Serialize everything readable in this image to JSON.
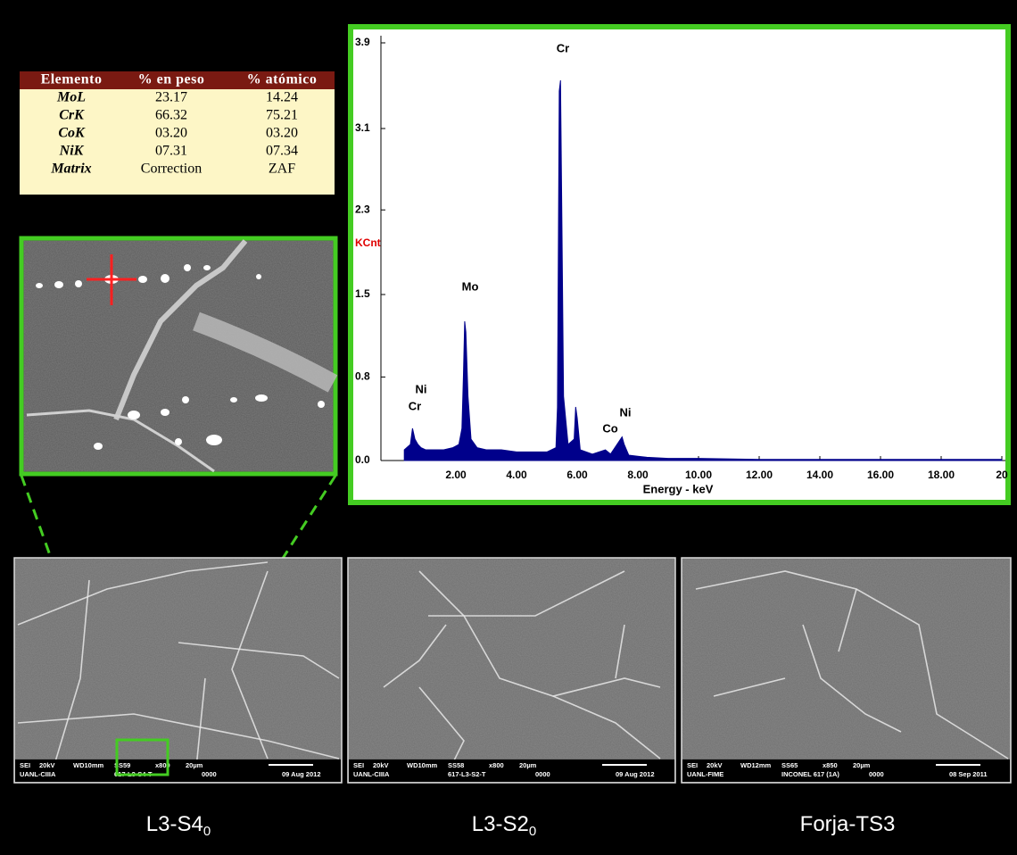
{
  "table": {
    "header": [
      "Elemento",
      "% en peso",
      "% atómico"
    ],
    "rows": [
      [
        "MoL",
        "23.17",
        "14.24"
      ],
      [
        "CrK",
        "66.32",
        "75.21"
      ],
      [
        "CoK",
        "03.20",
        "03.20"
      ],
      [
        "NiK",
        "07.31",
        "07.34"
      ],
      [
        "Matrix",
        "Correction",
        "ZAF"
      ]
    ]
  },
  "chart_data": {
    "type": "area",
    "y_label": "KCnt",
    "x_label": "Energy - keV",
    "color": "#00008b",
    "x": [
      0.3,
      0.5,
      0.57,
      0.65,
      0.75,
      0.85,
      1.0,
      1.3,
      1.6,
      1.9,
      2.1,
      2.2,
      2.25,
      2.29,
      2.33,
      2.4,
      2.5,
      2.7,
      3.0,
      3.5,
      4.0,
      4.5,
      5.0,
      5.3,
      5.35,
      5.41,
      5.45,
      5.5,
      5.55,
      5.7,
      5.9,
      5.95,
      6.0,
      6.1,
      6.5,
      6.93,
      7.1,
      7.48,
      7.55,
      7.7,
      8.0,
      8.3,
      9,
      10,
      12,
      14,
      16,
      18,
      20
    ],
    "values": [
      0.1,
      0.15,
      0.3,
      0.2,
      0.15,
      0.12,
      0.1,
      0.1,
      0.1,
      0.12,
      0.15,
      0.3,
      0.8,
      1.3,
      1.2,
      0.6,
      0.2,
      0.12,
      0.1,
      0.1,
      0.08,
      0.08,
      0.08,
      0.12,
      0.5,
      3.45,
      3.55,
      2.1,
      0.6,
      0.15,
      0.2,
      0.5,
      0.4,
      0.1,
      0.06,
      0.1,
      0.06,
      0.22,
      0.15,
      0.05,
      0.04,
      0.03,
      0.02,
      0.02,
      0.01,
      0.01,
      0.01,
      0.01,
      0.01
    ],
    "xlim": [
      0,
      20
    ],
    "ylim": [
      0,
      3.9
    ],
    "xticks": [
      {
        "value": 2,
        "label": "2.00"
      },
      {
        "value": 4,
        "label": "4.00"
      },
      {
        "value": 6,
        "label": "6.00"
      },
      {
        "value": 8,
        "label": "8.00"
      },
      {
        "value": 10,
        "label": "10.00"
      },
      {
        "value": 12,
        "label": "12.00"
      },
      {
        "value": 14,
        "label": "14.00"
      },
      {
        "value": 16,
        "label": "16.00"
      },
      {
        "value": 18,
        "label": "18.00"
      },
      20
    ],
    "yticks": [
      {
        "value": 0,
        "label": "0.0"
      },
      {
        "value": 0.78,
        "label": "0.8"
      },
      {
        "value": 1.55,
        "label": "1.5"
      },
      {
        "value": 2.34,
        "label": "2.3"
      },
      3.1,
      3.9
    ],
    "annotations": [
      "Cr",
      "Mo",
      "Ni",
      "Cr",
      "Co",
      "Ni"
    ]
  },
  "micrographs": [
    {
      "caption": "L3-S4",
      "subscript": "0",
      "info_top": [
        "SEI",
        "20kV",
        "WD10mm",
        "SS59",
        "x800",
        "20µm"
      ],
      "info_bottom": [
        "UANL-CIIIA",
        "617-L3-S4-T",
        "0000",
        "09 Aug 2012"
      ]
    },
    {
      "caption": "L3-S2",
      "subscript": "0",
      "info_top": [
        "SEI",
        "20kV",
        "WD10mm",
        "SS58",
        "x800",
        "20µm"
      ],
      "info_bottom": [
        "UANL-CIIIA",
        "617-L3-S2-T",
        "0000",
        "09 Aug 2012"
      ]
    },
    {
      "caption": "Forja-TS3",
      "info_top": [
        "SEI",
        "20kV",
        "WD12mm",
        "SS65",
        "x850",
        "20µm"
      ],
      "info_bottom": [
        "UANL-FIME",
        "INCONEL 617 (1A)",
        "0000",
        "08 Sep 2011"
      ]
    }
  ]
}
